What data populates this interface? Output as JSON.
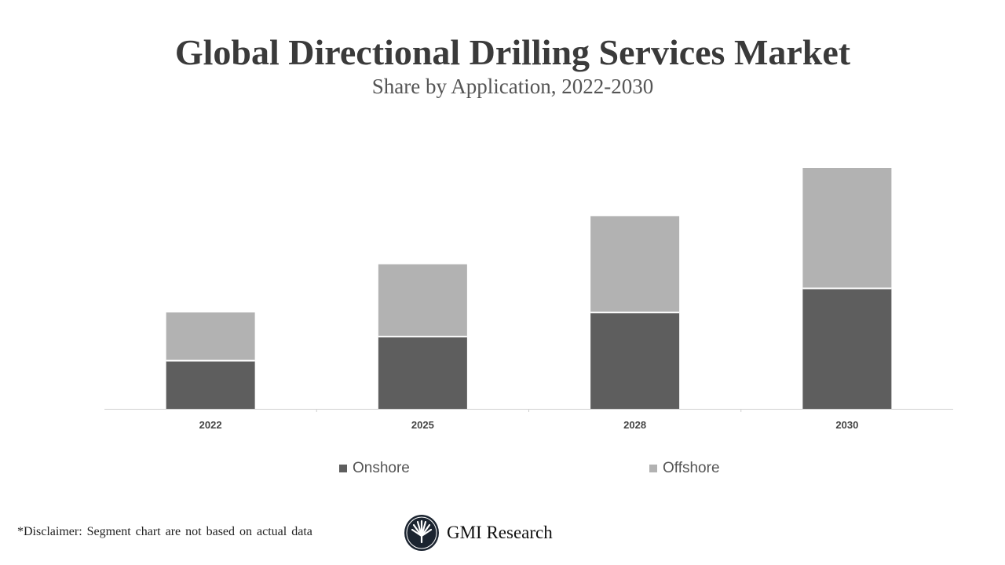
{
  "chart_data": {
    "type": "bar",
    "stacked": true,
    "title": "Global Directional Drilling Services Market",
    "subtitle": "Share by Application, 2022-2030",
    "categories": [
      "2022",
      "2025",
      "2028",
      "2030"
    ],
    "series": [
      {
        "name": "Onshore",
        "values": [
          2,
          3,
          4,
          5
        ],
        "color": "#5e5e5e"
      },
      {
        "name": "Offshore",
        "values": [
          2,
          3,
          4,
          5
        ],
        "color": "#b2b2b2"
      }
    ],
    "ylim": [
      0,
      10
    ],
    "grid": false,
    "legend_position": "bottom"
  },
  "footer": {
    "disclaimer": "*Disclaimer:  Segment chart are not based on actual data",
    "brand": "GMI Research"
  }
}
